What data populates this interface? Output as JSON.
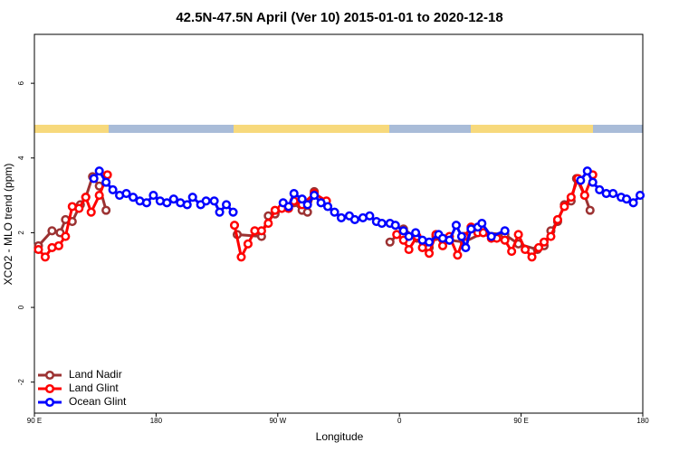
{
  "chart_data": {
    "type": "line",
    "title": "42.5N-47.5N April (Ver 10)   2015-01-01 to 2020-12-18",
    "x_label": "Longitude",
    "y_label": "XCO2 - MLO trend (ppm)",
    "xlim": [
      90,
      540
    ],
    "ylim": [
      -2.83,
      7.31
    ],
    "xticks": [
      {
        "value": 90,
        "label": "90 E"
      },
      180,
      {
        "value": 270,
        "label": "90 W"
      },
      {
        "value": 360,
        "label": "0"
      },
      {
        "value": 450,
        "label": "90 E"
      },
      {
        "value": 540,
        "label": "180"
      }
    ],
    "yticks": [
      -2,
      0,
      2,
      4,
      6
    ],
    "legend": "bottom-left",
    "series": [
      {
        "name": "Land Nadir",
        "color": "#9c3232",
        "x": [
          93,
          103,
          109,
          113,
          118,
          124,
          128,
          133,
          138,
          143,
          190,
          240,
          258,
          263,
          268,
          282,
          288,
          292,
          297,
          330,
          353,
          363,
          373,
          382,
          387,
          397,
          408,
          422,
          438,
          448,
          462,
          467,
          472,
          477,
          482,
          487,
          491,
          497,
          501
        ],
        "values": [
          1.65,
          2.05,
          2.0,
          2.35,
          2.3,
          2.75,
          2.95,
          3.5,
          3.25,
          2.6,
          null,
          1.95,
          1.9,
          2.45,
          2.5,
          2.8,
          2.6,
          2.55,
          3.1,
          null,
          1.75,
          2.1,
          1.85,
          1.6,
          1.9,
          1.8,
          1.75,
          2.0,
          1.95,
          1.7,
          1.55,
          1.65,
          2.05,
          2.3,
          2.75,
          2.85,
          3.45,
          3.0,
          2.6
        ]
      },
      {
        "name": "Land Glint",
        "color": "#ff0000",
        "x": [
          93,
          98,
          103,
          108,
          113,
          118,
          123,
          128,
          132,
          138,
          144,
          190,
          238,
          243,
          248,
          253,
          258,
          263,
          268,
          273,
          278,
          282,
          288,
          297,
          306,
          330,
          358,
          363,
          367,
          373,
          377,
          382,
          387,
          392,
          397,
          403,
          408,
          413,
          418,
          422,
          428,
          432,
          438,
          443,
          448,
          453,
          458,
          463,
          467,
          472,
          477,
          482,
          487,
          492,
          497,
          503
        ],
        "values": [
          1.55,
          1.35,
          1.6,
          1.65,
          1.9,
          2.7,
          2.65,
          2.95,
          2.55,
          3.0,
          3.55,
          null,
          2.2,
          1.35,
          1.7,
          2.05,
          2.05,
          2.25,
          2.6,
          2.65,
          2.65,
          2.85,
          2.75,
          3.05,
          2.85,
          null,
          1.95,
          1.8,
          1.55,
          1.9,
          1.6,
          1.45,
          1.95,
          1.65,
          1.9,
          1.4,
          1.9,
          2.15,
          2.0,
          2.0,
          1.85,
          1.85,
          1.8,
          1.5,
          1.95,
          1.55,
          1.35,
          1.6,
          1.75,
          1.9,
          2.35,
          2.7,
          2.95,
          3.45,
          3.0,
          3.55
        ]
      },
      {
        "name": "Ocean Glint",
        "color": "#0000ff",
        "x": [
          134,
          138,
          143,
          148,
          153,
          158,
          163,
          168,
          173,
          178,
          183,
          188,
          193,
          198,
          203,
          207,
          213,
          217,
          223,
          227,
          232,
          237,
          255,
          274,
          278,
          282,
          288,
          292,
          297,
          302,
          307,
          312,
          317,
          323,
          327,
          333,
          338,
          343,
          347,
          353,
          357,
          363,
          367,
          372,
          377,
          382,
          389,
          392,
          397,
          402,
          406,
          409,
          413,
          418,
          421,
          428,
          438,
          466,
          494,
          499,
          503,
          508,
          513,
          518,
          524,
          528,
          533,
          538
        ],
        "values": [
          3.45,
          3.65,
          3.35,
          3.15,
          3.0,
          3.05,
          2.95,
          2.85,
          2.8,
          3.0,
          2.85,
          2.8,
          2.9,
          2.8,
          2.75,
          2.95,
          2.75,
          2.85,
          2.85,
          2.55,
          2.75,
          2.55,
          null,
          2.8,
          2.7,
          3.05,
          2.9,
          2.75,
          3.0,
          2.8,
          2.7,
          2.55,
          2.4,
          2.45,
          2.35,
          2.4,
          2.45,
          2.3,
          2.25,
          2.25,
          2.2,
          2.05,
          1.9,
          2.0,
          1.8,
          1.75,
          1.95,
          1.85,
          1.8,
          2.2,
          1.9,
          1.6,
          2.1,
          2.15,
          2.25,
          1.9,
          2.05,
          null,
          3.4,
          3.65,
          3.35,
          3.15,
          3.05,
          3.05,
          2.95,
          2.9,
          2.8,
          3.0
        ]
      }
    ]
  }
}
